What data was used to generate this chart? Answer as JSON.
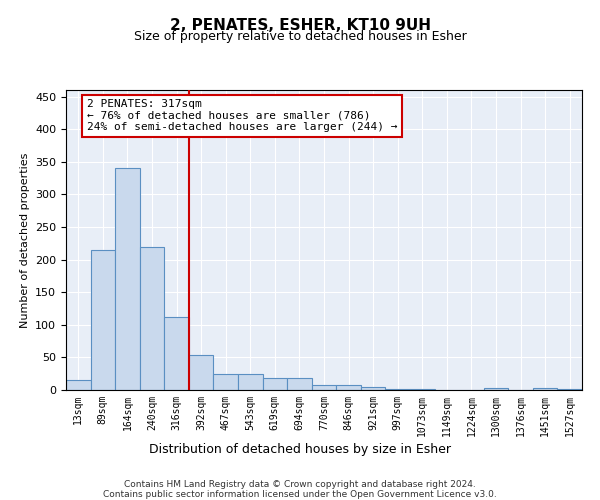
{
  "title": "2, PENATES, ESHER, KT10 9UH",
  "subtitle": "Size of property relative to detached houses in Esher",
  "xlabel": "Distribution of detached houses by size in Esher",
  "ylabel": "Number of detached properties",
  "footer_line1": "Contains HM Land Registry data © Crown copyright and database right 2024.",
  "footer_line2": "Contains public sector information licensed under the Open Government Licence v3.0.",
  "annotation_line1": "2 PENATES: 317sqm",
  "annotation_line2": "← 76% of detached houses are smaller (786)",
  "annotation_line3": "24% of semi-detached houses are larger (244) →",
  "bar_color": "#c9d9ed",
  "bar_edge_color": "#5a8fc2",
  "vline_color": "#cc0000",
  "annotation_box_color": "#cc0000",
  "background_color": "#e8eef7",
  "categories": [
    "13sqm",
    "89sqm",
    "164sqm",
    "240sqm",
    "316sqm",
    "392sqm",
    "467sqm",
    "543sqm",
    "619sqm",
    "694sqm",
    "770sqm",
    "846sqm",
    "921sqm",
    "997sqm",
    "1073sqm",
    "1149sqm",
    "1224sqm",
    "1300sqm",
    "1376sqm",
    "1451sqm",
    "1527sqm"
  ],
  "values": [
    15,
    215,
    340,
    220,
    112,
    53,
    25,
    25,
    18,
    18,
    8,
    7,
    5,
    1,
    1,
    0,
    0,
    3,
    0,
    3,
    2
  ],
  "vline_position": 4.5,
  "ylim": [
    0,
    460
  ],
  "yticks": [
    0,
    50,
    100,
    150,
    200,
    250,
    300,
    350,
    400,
    450
  ]
}
